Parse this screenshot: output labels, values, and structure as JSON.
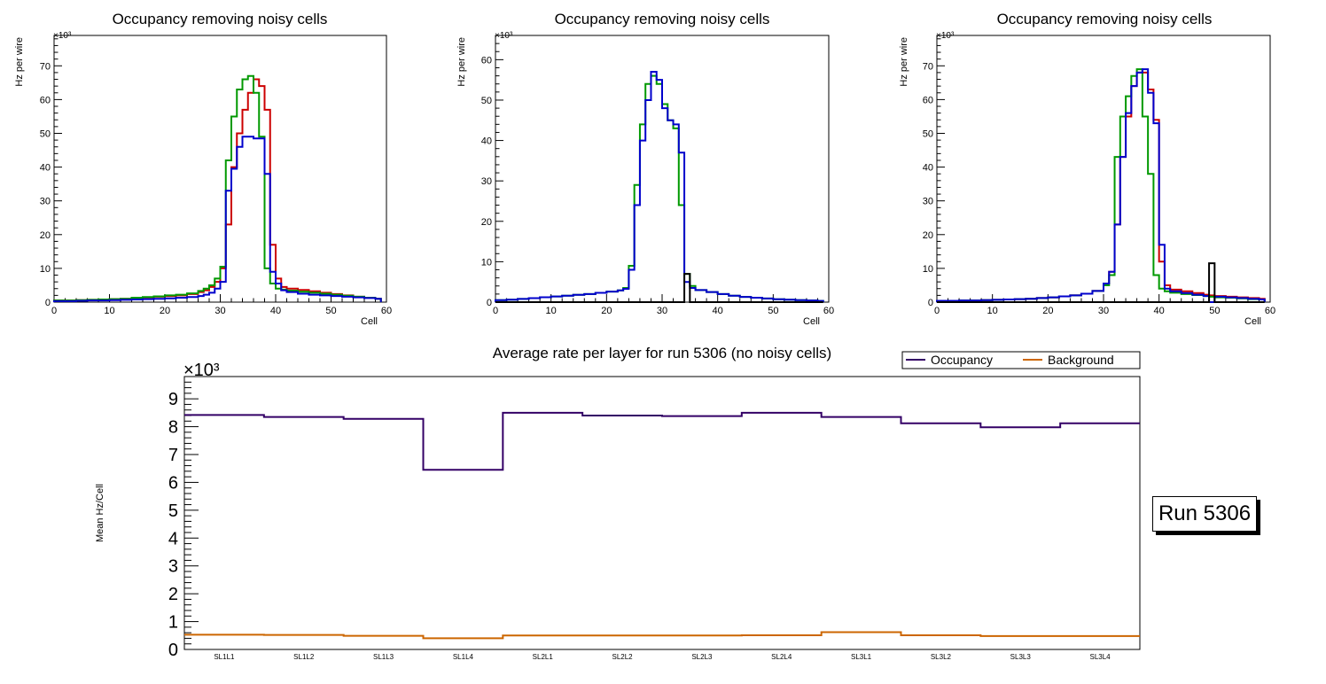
{
  "colors": {
    "red": "#cc0000",
    "green": "#009900",
    "blue": "#0000cc",
    "black": "#000000",
    "occupancy": "#330066",
    "background": "#cc6600"
  },
  "run_label": "Run 5306",
  "chart_data": [
    {
      "type": "histogram",
      "title": "Occupancy removing noisy cells",
      "xlabel": "Cell",
      "ylabel": "Hz per wire",
      "exponent_label": "×10³",
      "xlim": [
        0,
        60
      ],
      "ylim": [
        0,
        79
      ],
      "x_ticks": [
        0,
        10,
        20,
        30,
        40,
        50,
        60
      ],
      "y_ticks": [
        0,
        10,
        20,
        30,
        40,
        50,
        60,
        70
      ],
      "bin_edges": [
        0,
        2,
        4,
        6,
        8,
        10,
        12,
        14,
        16,
        18,
        20,
        22,
        24,
        26,
        27,
        28,
        29,
        30,
        31,
        32,
        33,
        34,
        35,
        36,
        37,
        38,
        39,
        40,
        41,
        42,
        44,
        46,
        48,
        50,
        52,
        54,
        56,
        58,
        59
      ],
      "series": [
        {
          "name": "red",
          "color": "red",
          "values": [
            0.5,
            0.5,
            0.6,
            0.7,
            0.8,
            0.9,
            1.0,
            1.2,
            1.4,
            1.6,
            1.8,
            2.0,
            2.4,
            3.0,
            3.5,
            4.5,
            6.0,
            10,
            23,
            40,
            50,
            57,
            62,
            66,
            64,
            57,
            17,
            7,
            4.5,
            4.0,
            3.6,
            3.2,
            2.8,
            2.4,
            2.0,
            1.6,
            1.3,
            1.0
          ]
        },
        {
          "name": "green",
          "color": "green",
          "values": [
            0.5,
            0.5,
            0.6,
            0.7,
            0.8,
            0.9,
            1.0,
            1.3,
            1.5,
            1.7,
            2.0,
            2.2,
            2.6,
            3.3,
            4.0,
            5.0,
            7.0,
            10.5,
            42,
            55,
            63,
            66,
            67,
            62,
            49,
            10,
            5.5,
            4.0,
            3.7,
            3.4,
            3.1,
            2.8,
            2.5,
            2.2,
            1.9,
            1.6,
            1.3,
            1.0
          ]
        },
        {
          "name": "blue",
          "color": "blue",
          "values": [
            0.3,
            0.3,
            0.4,
            0.5,
            0.5,
            0.6,
            0.7,
            0.8,
            0.9,
            1.0,
            1.1,
            1.3,
            1.5,
            1.8,
            2.2,
            2.8,
            4.0,
            6.0,
            33,
            39.5,
            46,
            49,
            49,
            48.5,
            48.5,
            38,
            9,
            5.5,
            3.5,
            3.0,
            2.5,
            2.2,
            2.0,
            1.8,
            1.6,
            1.4,
            1.2,
            1.0
          ]
        }
      ]
    },
    {
      "type": "histogram",
      "title": "Occupancy removing noisy cells",
      "xlabel": "Cell",
      "ylabel": "Hz per wire",
      "exponent_label": "×10³",
      "xlim": [
        0,
        60
      ],
      "ylim": [
        0,
        66
      ],
      "x_ticks": [
        0,
        10,
        20,
        30,
        40,
        50,
        60
      ],
      "y_ticks": [
        0,
        10,
        20,
        30,
        40,
        50,
        60
      ],
      "bin_edges": [
        0,
        2,
        4,
        6,
        8,
        10,
        12,
        14,
        16,
        18,
        20,
        22,
        23,
        24,
        25,
        26,
        27,
        28,
        29,
        30,
        31,
        32,
        33,
        34,
        35,
        36,
        38,
        40,
        42,
        44,
        46,
        48,
        50,
        52,
        54,
        56,
        58,
        59
      ],
      "series": [
        {
          "name": "green",
          "color": "green",
          "values": [
            0.5,
            0.6,
            0.8,
            1.0,
            1.2,
            1.4,
            1.6,
            1.8,
            2.0,
            2.3,
            2.6,
            2.9,
            3.5,
            9,
            29,
            44,
            54,
            56,
            54,
            49,
            45,
            43,
            24,
            7,
            4,
            3.0,
            2.5,
            2.0,
            1.6,
            1.3,
            1.1,
            0.9,
            0.7,
            0.6,
            0.5,
            0.4,
            0.3
          ]
        },
        {
          "name": "blue",
          "color": "blue",
          "values": [
            0.5,
            0.6,
            0.8,
            1.0,
            1.2,
            1.4,
            1.6,
            1.8,
            2.0,
            2.3,
            2.6,
            2.9,
            3.3,
            8.0,
            24,
            40,
            50,
            57,
            55,
            48,
            45,
            44,
            37,
            5,
            3.5,
            3.0,
            2.5,
            2.0,
            1.6,
            1.3,
            1.1,
            0.9,
            0.7,
            0.6,
            0.5,
            0.4,
            0.3
          ]
        },
        {
          "name": "black",
          "color": "black",
          "values": [
            0,
            0,
            0,
            0,
            0,
            0,
            0,
            0,
            0,
            0,
            0,
            0,
            0,
            0,
            0,
            0,
            0,
            0,
            0,
            0,
            0,
            0,
            0,
            7,
            0,
            0,
            0,
            0,
            0,
            0,
            0,
            0,
            0,
            0,
            0,
            0,
            0
          ]
        }
      ]
    },
    {
      "type": "histogram",
      "title": "Occupancy removing noisy cells",
      "xlabel": "Cell",
      "ylabel": "Hz per wire",
      "exponent_label": "×10³",
      "xlim": [
        0,
        60
      ],
      "ylim": [
        0,
        79
      ],
      "x_ticks": [
        0,
        10,
        20,
        30,
        40,
        50,
        60
      ],
      "y_ticks": [
        0,
        10,
        20,
        30,
        40,
        50,
        60,
        70
      ],
      "bin_edges": [
        0,
        2,
        4,
        6,
        8,
        10,
        12,
        14,
        16,
        18,
        20,
        22,
        24,
        26,
        28,
        30,
        31,
        32,
        33,
        34,
        35,
        36,
        37,
        38,
        39,
        40,
        41,
        42,
        44,
        46,
        48,
        49,
        50,
        52,
        54,
        56,
        58,
        59
      ],
      "series": [
        {
          "name": "red",
          "color": "red",
          "values": [
            0.4,
            0.4,
            0.5,
            0.5,
            0.6,
            0.7,
            0.8,
            0.9,
            1.0,
            1.2,
            1.4,
            1.7,
            2.0,
            2.5,
            3.3,
            5.5,
            9,
            23,
            43,
            55,
            64,
            68,
            68,
            63,
            54,
            12,
            5.0,
            3.7,
            3.2,
            2.7,
            2.2,
            2.0,
            1.8,
            1.6,
            1.4,
            1.2,
            1.0
          ]
        },
        {
          "name": "green",
          "color": "green",
          "values": [
            0.4,
            0.4,
            0.5,
            0.5,
            0.6,
            0.7,
            0.8,
            0.9,
            1.0,
            1.2,
            1.4,
            1.7,
            2.0,
            2.5,
            3.3,
            5.0,
            8.0,
            43,
            55,
            61,
            67,
            69,
            55,
            38,
            8.0,
            4.0,
            3.2,
            2.8,
            2.4,
            2.1,
            1.8,
            1.6,
            1.4,
            1.3,
            1.1,
            0.9,
            0.8
          ]
        },
        {
          "name": "blue",
          "color": "blue",
          "values": [
            0.4,
            0.4,
            0.5,
            0.5,
            0.6,
            0.7,
            0.8,
            0.9,
            1.0,
            1.2,
            1.4,
            1.7,
            2.0,
            2.5,
            3.3,
            5.5,
            9,
            23,
            43,
            56,
            64,
            68,
            69,
            62,
            53,
            17,
            4.0,
            3.2,
            2.7,
            2.2,
            1.8,
            0,
            1.6,
            1.4,
            1.2,
            1.0,
            0.8
          ]
        },
        {
          "name": "black",
          "color": "black",
          "values": [
            0,
            0,
            0,
            0,
            0,
            0,
            0,
            0,
            0,
            0,
            0,
            0,
            0,
            0,
            0,
            0,
            0,
            0,
            0,
            0,
            0,
            0,
            0,
            0,
            0,
            0,
            0,
            0,
            0,
            0,
            0,
            11.5,
            0,
            0,
            0,
            0,
            0
          ]
        }
      ]
    },
    {
      "type": "histogram",
      "title": "Average rate per layer for run 5306 (no noisy cells)",
      "xlabel": "",
      "ylabel": "Mean Hz/Cell",
      "exponent_label": "×10³",
      "categories": [
        "SL1L1",
        "SL1L2",
        "SL1L3",
        "SL1L4",
        "SL2L1",
        "SL2L2",
        "SL2L3",
        "SL2L4",
        "SL3L1",
        "SL3L2",
        "SL3L3",
        "SL3L4"
      ],
      "ylim": [
        0,
        9.8
      ],
      "y_ticks": [
        0,
        1,
        2,
        3,
        4,
        5,
        6,
        7,
        8,
        9
      ],
      "legend": {
        "position": "top-right",
        "entries": [
          "Occupancy",
          "Background"
        ]
      },
      "series": [
        {
          "name": "Occupancy",
          "color": "occupancy",
          "values": [
            8.42,
            8.35,
            8.28,
            6.45,
            8.5,
            8.4,
            8.38,
            8.5,
            8.35,
            8.12,
            7.98,
            8.12
          ]
        },
        {
          "name": "Background",
          "color": "background",
          "values": [
            0.53,
            0.52,
            0.49,
            0.4,
            0.5,
            0.5,
            0.5,
            0.51,
            0.62,
            0.51,
            0.48,
            0.48
          ]
        }
      ]
    }
  ]
}
